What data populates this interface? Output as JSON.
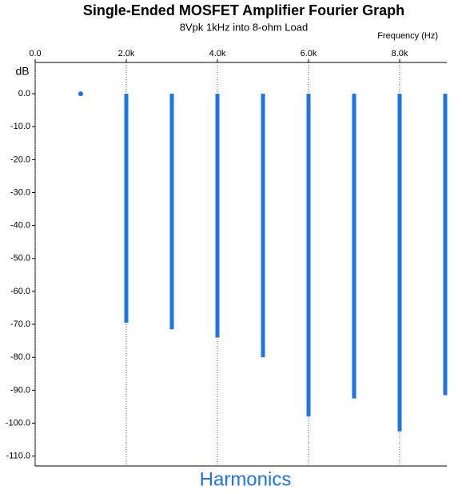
{
  "chart_data": {
    "type": "stem",
    "title": "Single-Ended MOSFET Amplifier Fourier Graph",
    "subtitle": "8Vpk 1kHz into 8-ohm Load",
    "x_label": "Frequency  (Hz)",
    "y_label": "dB",
    "footer": "Harmonics",
    "x": [
      1000,
      2000,
      3000,
      4000,
      5000,
      6000,
      7000,
      8000,
      9000
    ],
    "values": [
      0,
      -69.5,
      -71.5,
      -74,
      -80,
      -98,
      -92.5,
      -102.5,
      -91.5
    ],
    "color": "#1e74e6",
    "xlim": [
      0,
      9000
    ],
    "xticks": [
      {
        "value": 0,
        "label": "0.0"
      },
      {
        "value": 2000,
        "label": "2.0k"
      },
      {
        "value": 4000,
        "label": "4.0k"
      },
      {
        "value": 6000,
        "label": "6.0k"
      },
      {
        "value": 8000,
        "label": "8.0k"
      }
    ],
    "ylim": [
      -113,
      9.5
    ],
    "yticks": [
      {
        "value": 0,
        "label": "0.0"
      },
      {
        "value": -10,
        "label": "-10.0"
      },
      {
        "value": -20,
        "label": "-20.0"
      },
      {
        "value": -30,
        "label": "-30.0"
      },
      {
        "value": -40,
        "label": "-40.0"
      },
      {
        "value": -50,
        "label": "-50.0"
      },
      {
        "value": -60,
        "label": "-60.0"
      },
      {
        "value": -70,
        "label": "-70.0"
      },
      {
        "value": -80,
        "label": "-80.0"
      },
      {
        "value": -90,
        "label": "-90.0"
      },
      {
        "value": -100,
        "label": "-100.0"
      },
      {
        "value": -110,
        "label": "-110.0"
      }
    ],
    "grid": true
  }
}
